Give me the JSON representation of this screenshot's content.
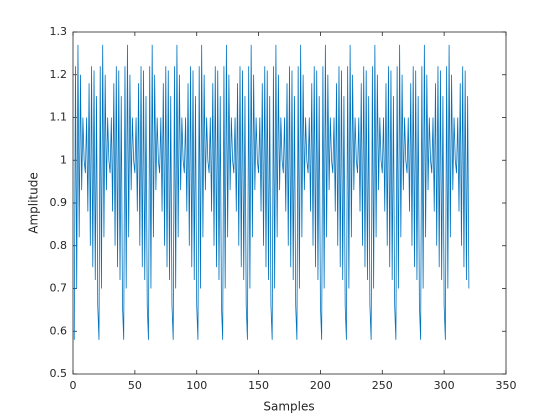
{
  "chart_data": {
    "type": "line",
    "xlabel": "Samples",
    "ylabel": "Amplitude",
    "color": "#0072bd",
    "xlim": [
      0,
      350
    ],
    "xticks": [
      0,
      50,
      100,
      150,
      200,
      250,
      300,
      350
    ],
    "ylim": [
      0.5,
      1.3
    ],
    "yticks": [
      0.5,
      0.6,
      0.7,
      0.8,
      0.9,
      {
        "value": 1,
        "label": "1"
      },
      1.1,
      1.2,
      1.3
    ],
    "x": [
      1,
      2,
      3,
      4,
      5,
      6,
      7,
      8,
      9,
      10,
      11,
      12,
      13,
      14,
      15,
      16,
      17,
      18,
      19,
      20,
      21,
      22,
      23,
      24,
      25,
      26,
      27,
      28,
      29,
      30,
      31,
      32,
      33,
      34,
      35,
      36,
      37,
      38,
      39,
      40,
      41,
      42,
      43,
      44,
      45,
      46,
      47,
      48,
      49,
      50,
      51,
      52,
      53,
      54,
      55,
      56,
      57,
      58,
      59,
      60,
      61,
      62,
      63,
      64,
      65,
      66,
      67,
      68,
      69,
      70,
      71,
      72,
      73,
      74,
      75,
      76,
      77,
      78,
      79,
      80,
      81,
      82,
      83,
      84,
      85,
      86,
      87,
      88,
      89,
      90,
      91,
      92,
      93,
      94,
      95,
      96,
      97,
      98,
      99,
      100,
      101,
      102,
      103,
      104,
      105,
      106,
      107,
      108,
      109,
      110,
      111,
      112,
      113,
      114,
      115,
      116,
      117,
      118,
      119,
      120,
      121,
      122,
      123,
      124,
      125,
      126,
      127,
      128,
      129,
      130,
      131,
      132,
      133,
      134,
      135,
      136,
      137,
      138,
      139,
      140,
      141,
      142,
      143,
      144,
      145,
      146,
      147,
      148,
      149,
      150,
      151,
      152,
      153,
      154,
      155,
      156,
      157,
      158,
      159,
      160,
      161,
      162,
      163,
      164,
      165,
      166,
      167,
      168,
      169,
      170,
      171,
      172,
      173,
      174,
      175,
      176,
      177,
      178,
      179,
      180,
      181,
      182,
      183,
      184,
      185,
      186,
      187,
      188,
      189,
      190,
      191,
      192,
      193,
      194,
      195,
      196,
      197,
      198,
      199,
      200,
      201,
      202,
      203,
      204,
      205,
      206,
      207,
      208,
      209,
      210,
      211,
      212,
      213,
      214,
      215,
      216,
      217,
      218,
      219,
      220,
      221,
      222,
      223,
      224,
      225,
      226,
      227,
      228,
      229,
      230,
      231,
      232,
      233,
      234,
      235,
      236,
      237,
      238,
      239,
      240,
      241,
      242,
      243,
      244,
      245,
      246,
      247,
      248,
      249,
      250,
      251,
      252,
      253,
      254,
      255,
      256,
      257,
      258,
      259,
      260,
      261,
      262,
      263,
      264,
      265,
      266,
      267,
      268,
      269,
      270,
      271,
      272,
      273,
      274,
      275,
      276,
      277,
      278,
      279,
      280,
      281,
      282,
      283,
      284,
      285,
      286,
      287,
      288,
      289,
      290,
      291,
      292,
      293,
      294,
      295,
      296,
      297,
      298,
      299,
      300,
      301,
      302,
      303,
      304,
      305,
      306,
      307,
      308,
      309,
      310,
      311,
      312,
      313,
      314,
      315,
      316,
      317,
      318,
      319,
      320
    ],
    "values": [
      0.58,
      1.22,
      0.7,
      1.27,
      0.82,
      1.2,
      0.93,
      1.1,
      1.0,
      0.97,
      1.1,
      0.88,
      1.18,
      0.8,
      1.22,
      0.75,
      1.21,
      0.72,
      1.15,
      0.66,
      0.58,
      1.22,
      0.7,
      1.27,
      0.82,
      1.2,
      0.93,
      1.1,
      1.0,
      0.97,
      1.1,
      0.88,
      1.18,
      0.8,
      1.22,
      0.75,
      1.21,
      0.72,
      1.15,
      0.66,
      0.58,
      1.22,
      0.7,
      1.27,
      0.82,
      1.2,
      0.93,
      1.1,
      1.0,
      0.97,
      1.1,
      0.88,
      1.18,
      0.8,
      1.22,
      0.75,
      1.21,
      0.72,
      1.15,
      0.66,
      0.58,
      1.22,
      0.7,
      1.27,
      0.82,
      1.2,
      0.93,
      1.1,
      1.0,
      0.97,
      1.1,
      0.88,
      1.18,
      0.8,
      1.22,
      0.75,
      1.21,
      0.72,
      1.15,
      0.66,
      0.58,
      1.22,
      0.7,
      1.27,
      0.82,
      1.2,
      0.93,
      1.1,
      1.0,
      0.97,
      1.1,
      0.88,
      1.18,
      0.8,
      1.22,
      0.75,
      1.21,
      0.72,
      1.15,
      0.66,
      0.58,
      1.22,
      0.7,
      1.27,
      0.82,
      1.2,
      0.93,
      1.1,
      1.0,
      0.97,
      1.1,
      0.88,
      1.18,
      0.8,
      1.22,
      0.75,
      1.21,
      0.72,
      1.15,
      0.66,
      0.58,
      1.22,
      0.7,
      1.27,
      0.82,
      1.2,
      0.93,
      1.1,
      1.0,
      0.97,
      1.1,
      0.88,
      1.18,
      0.8,
      1.22,
      0.75,
      1.21,
      0.72,
      1.15,
      0.66,
      0.58,
      1.22,
      0.7,
      1.27,
      0.82,
      1.2,
      0.93,
      1.1,
      1.0,
      0.97,
      1.1,
      0.88,
      1.18,
      0.8,
      1.22,
      0.75,
      1.21,
      0.72,
      1.15,
      0.66,
      0.58,
      1.22,
      0.7,
      1.27,
      0.82,
      1.2,
      0.93,
      1.1,
      1.0,
      0.97,
      1.1,
      0.88,
      1.18,
      0.8,
      1.22,
      0.75,
      1.21,
      0.72,
      1.15,
      0.66,
      0.58,
      1.22,
      0.7,
      1.27,
      0.82,
      1.2,
      0.93,
      1.1,
      1.0,
      0.97,
      1.1,
      0.88,
      1.18,
      0.8,
      1.22,
      0.75,
      1.21,
      0.72,
      1.15,
      0.66,
      0.58,
      1.22,
      0.7,
      1.27,
      0.82,
      1.2,
      0.93,
      1.1,
      1.0,
      0.97,
      1.1,
      0.88,
      1.18,
      0.8,
      1.22,
      0.75,
      1.21,
      0.72,
      1.15,
      0.66,
      0.58,
      1.22,
      0.7,
      1.27,
      0.82,
      1.2,
      0.93,
      1.1,
      1.0,
      0.97,
      1.1,
      0.88,
      1.18,
      0.8,
      1.22,
      0.75,
      1.21,
      0.72,
      1.15,
      0.66,
      0.58,
      1.22,
      0.7,
      1.27,
      0.82,
      1.2,
      0.93,
      1.1,
      1.0,
      0.97,
      1.1,
      0.88,
      1.18,
      0.8,
      1.22,
      0.75,
      1.21,
      0.72,
      1.15,
      0.66,
      0.58,
      1.22,
      0.7,
      1.27,
      0.82,
      1.2,
      0.93,
      1.1,
      1.0,
      0.97,
      1.1,
      0.88,
      1.18,
      0.8,
      1.22,
      0.75,
      1.21,
      0.72,
      1.15,
      0.66,
      0.58,
      1.22,
      0.7,
      1.27,
      0.82,
      1.2,
      0.93,
      1.1,
      1.0,
      0.97,
      1.1,
      0.88,
      1.18,
      0.8,
      1.22,
      0.75,
      1.21,
      0.72,
      1.15,
      0.66,
      0.58,
      1.22,
      0.7,
      1.27,
      0.82,
      1.2,
      0.93,
      1.1,
      1.0,
      0.97,
      1.1,
      0.88,
      1.18,
      0.8,
      1.22,
      0.75,
      1.21,
      0.72,
      1.15,
      0.7
    ]
  }
}
